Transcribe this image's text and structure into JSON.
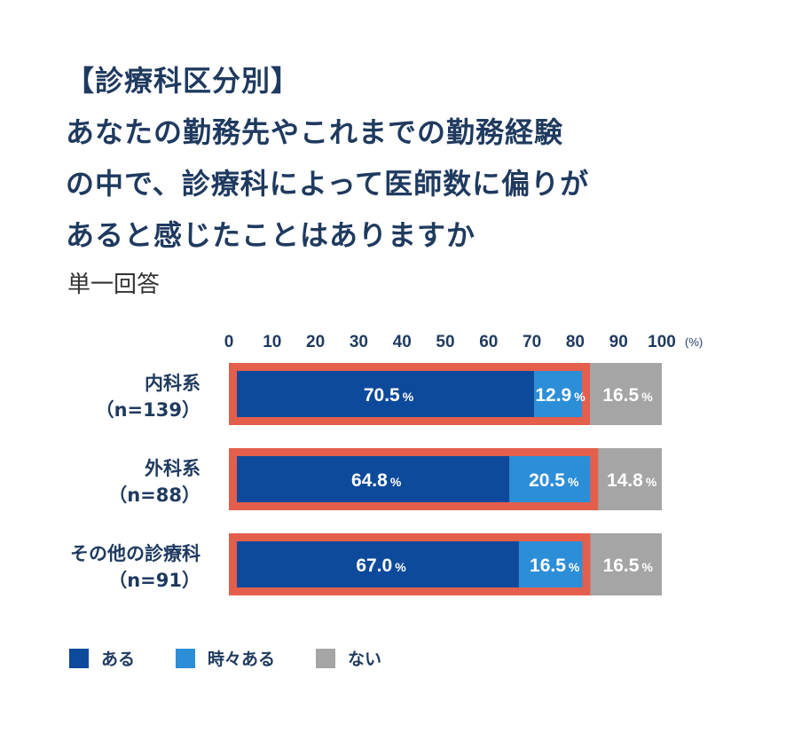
{
  "title_lines": [
    "【診療科区分別】",
    "あなたの勤務先やこれまでの勤務経験",
    "の中で、診療科によって医師数に偏りが",
    "あると感じたことはありますか"
  ],
  "subtitle": "単一回答",
  "colors": {
    "aru": "#0e4a9c",
    "tokidoki": "#2d8ed8",
    "nai": "#a5a5a5",
    "highlight": "#e35f4c",
    "text": "#1f3a5f"
  },
  "chart_data": {
    "type": "bar",
    "orientation": "horizontal",
    "stacked": true,
    "xlim": [
      0,
      100
    ],
    "x_ticks": [
      "0",
      "10",
      "20",
      "30",
      "40",
      "50",
      "60",
      "70",
      "80",
      "90",
      "100"
    ],
    "x_unit": "(%)",
    "categories": [
      [
        "内科系",
        "（n=139）"
      ],
      [
        "外科系",
        "（n=88）"
      ],
      [
        "その他の診療科",
        "（n=91）"
      ]
    ],
    "series": [
      {
        "name": "ある",
        "values": [
          70.5,
          64.8,
          67.0
        ],
        "labels": [
          "70.5",
          "64.8",
          "67.0"
        ]
      },
      {
        "name": "時々ある",
        "values": [
          12.9,
          20.5,
          16.5
        ],
        "labels": [
          "12.9",
          "20.5",
          "16.5"
        ]
      },
      {
        "name": "ない",
        "values": [
          16.5,
          14.8,
          16.5
        ],
        "labels": [
          "16.5",
          "14.8",
          "16.5"
        ]
      }
    ],
    "label_suffix": "%",
    "highlight": "ある + 時々ある"
  }
}
